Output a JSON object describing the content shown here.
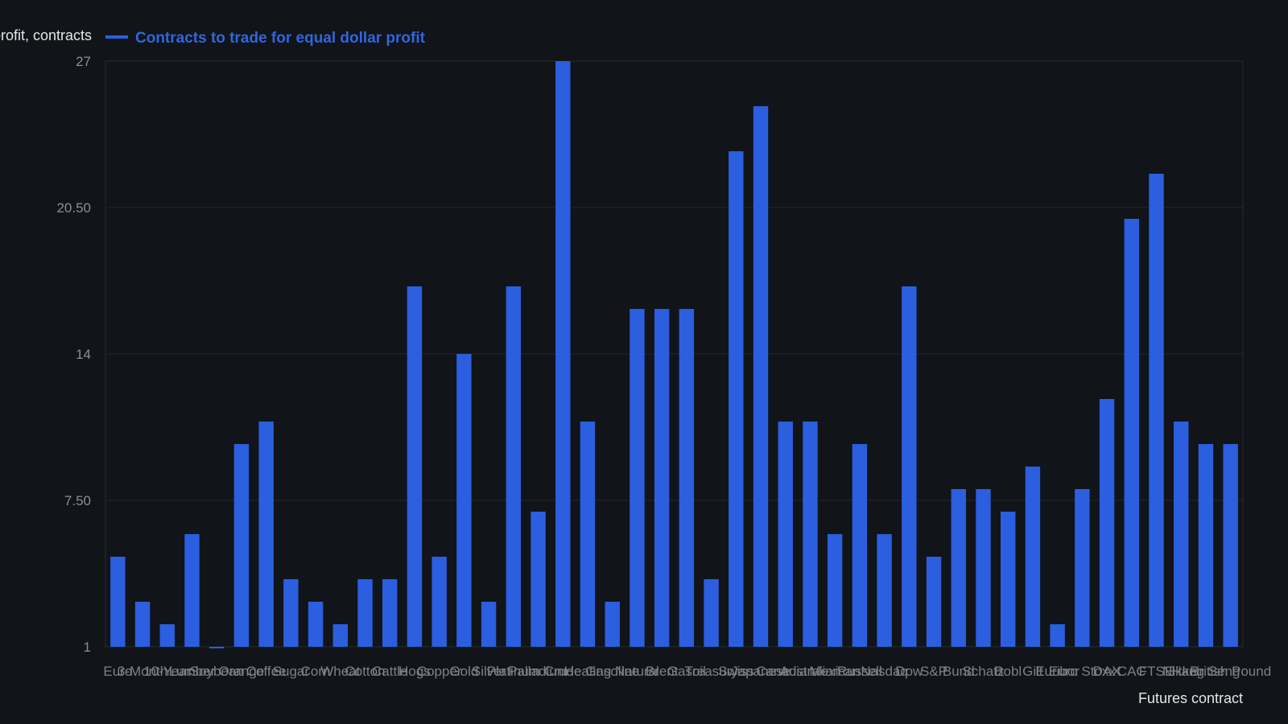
{
  "chart_data": {
    "type": "bar",
    "ylabel": "Contracts to trade for equal dollar profit, contracts",
    "xlabel": "Futures contract",
    "legend": [
      "Contracts to trade for equal dollar profit"
    ],
    "legend_position": "top-left",
    "yticks": [
      "1",
      "7.50",
      "14",
      "20.50",
      "27"
    ],
    "ylim": [
      1,
      27
    ],
    "grid": true,
    "colors": {
      "bar": "#2b5fe0",
      "background": "#111418",
      "grid": "#24282f"
    },
    "categories": [
      "Euro",
      "3-Month",
      "10-Year",
      "Lumber",
      "Soybean",
      "Orange",
      "Coffee",
      "Sugar",
      "Corn",
      "Wheat",
      "Cotton",
      "Cattle",
      "Hogs",
      "Copper",
      "Gold",
      "Silver",
      "Platinum",
      "Palladium",
      "Crude",
      "Heating",
      "Gasoline",
      "Natural",
      "Brent",
      "Gasoil",
      "Treasury",
      "Swiss",
      "Japanese",
      "Canadian",
      "Australian",
      "Mexican",
      "Russell",
      "Nasdaq",
      "Dow",
      "S&P",
      "Bund",
      "Schatz",
      "Bobl",
      "Gilt",
      "Euribor",
      "Euro Stoxx",
      "DAX",
      "CAC",
      "FTSE",
      "Nikkei",
      "Hang Seng",
      "British Pound"
    ],
    "series": [
      {
        "values": [
          5,
          3,
          2,
          6,
          1,
          10,
          11,
          4,
          3,
          2,
          4,
          4,
          17,
          5,
          14,
          3,
          17,
          7,
          27,
          11,
          3,
          16,
          16,
          16,
          4,
          23,
          25,
          11,
          11,
          6,
          10,
          6,
          17,
          5,
          8,
          8,
          7,
          9,
          2,
          8,
          12,
          20,
          22,
          11,
          10,
          10
        ]
      }
    ]
  }
}
